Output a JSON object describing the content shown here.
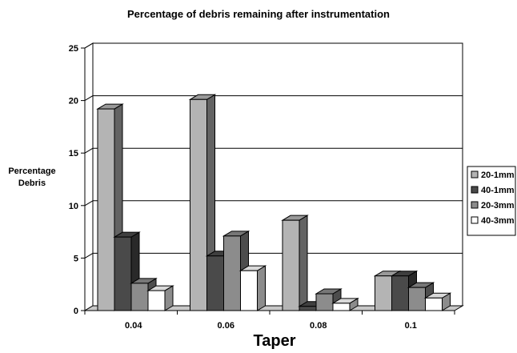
{
  "chart_data": {
    "type": "bar",
    "title": "Percentage of debris remaining after instrumentation",
    "xlabel": "Taper",
    "ylabel_lines": [
      "Percentage",
      "Debris"
    ],
    "categories": [
      "0.04",
      "0.06",
      "0.08",
      "0.1"
    ],
    "series": [
      {
        "name": "20-1mm",
        "values": [
          19.2,
          20.1,
          8.6,
          3.3
        ],
        "color": "#b4b4b4"
      },
      {
        "name": "40-1mm",
        "values": [
          7.0,
          5.2,
          0.4,
          3.3
        ],
        "color": "#4a4a4a"
      },
      {
        "name": "20-3mm",
        "values": [
          2.6,
          7.1,
          1.6,
          2.2
        ],
        "color": "#8c8c8c"
      },
      {
        "name": "40-3mm",
        "values": [
          1.9,
          3.8,
          0.7,
          1.2
        ],
        "color": "#ffffff"
      }
    ],
    "ylim": [
      0,
      25
    ],
    "yticks": [
      0,
      5,
      10,
      15,
      20,
      25
    ],
    "grid": true,
    "legend_position": "right",
    "style": "3d-bar"
  }
}
